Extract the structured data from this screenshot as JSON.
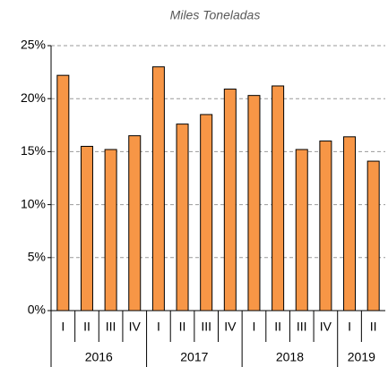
{
  "chart_data": {
    "type": "bar",
    "title": "Miles Toneladas",
    "groups": [
      {
        "name": "2016",
        "categories": [
          "I",
          "II",
          "III",
          "IV"
        ]
      },
      {
        "name": "2017",
        "categories": [
          "I",
          "II",
          "III",
          "IV"
        ]
      },
      {
        "name": "2018",
        "categories": [
          "I",
          "II",
          "III",
          "IV"
        ]
      },
      {
        "name": "2019",
        "categories": [
          "I",
          "II"
        ]
      }
    ],
    "values": [
      22.2,
      15.5,
      15.2,
      16.5,
      23.0,
      17.6,
      18.5,
      20.9,
      20.3,
      21.2,
      15.2,
      16.0,
      16.4,
      14.1
    ],
    "color": "#f79646",
    "ylim": [
      0,
      25
    ],
    "yticks": [
      {
        "value": 0,
        "label": "0%"
      },
      {
        "value": 5,
        "label": "5%"
      },
      {
        "value": 10,
        "label": "10%"
      },
      {
        "value": 15,
        "label": "15%"
      },
      {
        "value": 20,
        "label": "20%"
      },
      {
        "value": 25,
        "label": "25%"
      }
    ],
    "grid": true
  }
}
